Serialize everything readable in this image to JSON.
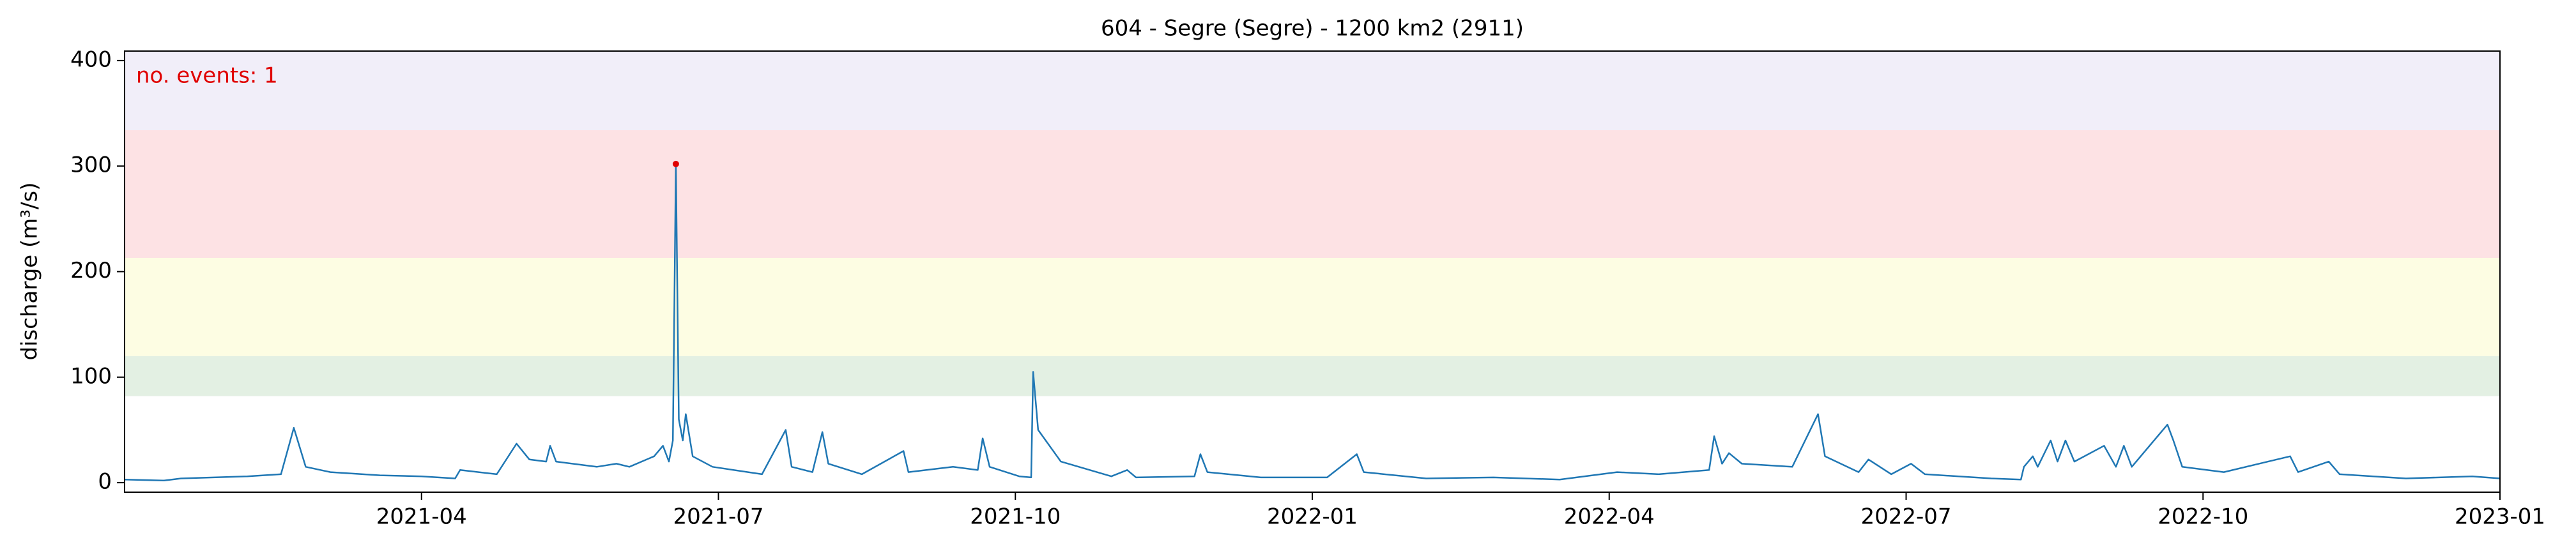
{
  "chart_data": {
    "type": "line",
    "title": "604 - Segre (Segre) - 1200 km2 (2911)",
    "ylabel": "discharge (m³/s)",
    "annotation": "no. events: 1",
    "annotation_color": "#e00000",
    "xlim": [
      0,
      24
    ],
    "xticks": [
      {
        "value": 3,
        "label": "2021-04"
      },
      {
        "value": 6,
        "label": "2021-07"
      },
      {
        "value": 9,
        "label": "2021-10"
      },
      {
        "value": 12,
        "label": "2022-01"
      },
      {
        "value": 15,
        "label": "2022-04"
      },
      {
        "value": 18,
        "label": "2022-07"
      },
      {
        "value": 21,
        "label": "2022-10"
      },
      {
        "value": 24,
        "label": "2023-01"
      }
    ],
    "ylim": [
      -9,
      409
    ],
    "yticks": [
      0,
      100,
      200,
      300,
      400
    ],
    "grid": false,
    "bands": [
      {
        "from": 82,
        "to": 120,
        "color": "#e3f0e3"
      },
      {
        "from": 120,
        "to": 213,
        "color": "#fdfde3"
      },
      {
        "from": 213,
        "to": 334,
        "color": "#fde2e4"
      },
      {
        "from": 334,
        "to": 409,
        "color": "#f1eef9"
      }
    ],
    "series": [
      {
        "color": "#1f77b4",
        "x": [
          0,
          0.4,
          0.57,
          1.24,
          1.58,
          1.71,
          1.83,
          2.08,
          2.58,
          3.0,
          3.34,
          3.39,
          3.76,
          3.96,
          4.09,
          4.26,
          4.3,
          4.36,
          4.77,
          4.97,
          5.1,
          5.35,
          5.44,
          5.5,
          5.54,
          5.57,
          5.6,
          5.64,
          5.67,
          5.74,
          5.94,
          6.44,
          6.68,
          6.74,
          6.95,
          7.05,
          7.11,
          7.45,
          7.87,
          7.92,
          8.37,
          8.62,
          8.67,
          8.74,
          9.04,
          9.16,
          9.18,
          9.23,
          9.46,
          9.97,
          10.13,
          10.22,
          10.81,
          10.87,
          10.94,
          11.48,
          12.15,
          12.45,
          12.52,
          13.15,
          13.83,
          14.5,
          15.08,
          15.5,
          16.01,
          16.06,
          16.14,
          16.21,
          16.34,
          16.85,
          17.11,
          17.18,
          17.52,
          17.62,
          17.85,
          18.05,
          18.19,
          18.86,
          19.16,
          19.19,
          19.28,
          19.33,
          19.46,
          19.53,
          19.61,
          19.7,
          20.0,
          20.12,
          20.2,
          20.28,
          20.64,
          20.7,
          20.79,
          21.21,
          21.88,
          21.96,
          22.27,
          22.38,
          23.05,
          23.72,
          24
        ],
        "values": [
          3,
          2,
          4,
          6,
          8,
          52,
          15,
          10,
          7,
          6,
          4,
          12,
          8,
          37,
          22,
          20,
          35,
          20,
          15,
          18,
          15,
          25,
          35,
          20,
          40,
          302,
          60,
          40,
          65,
          25,
          15,
          8,
          50,
          15,
          10,
          48,
          18,
          8,
          30,
          10,
          15,
          12,
          42,
          15,
          6,
          5,
          105,
          50,
          20,
          6,
          12,
          5,
          6,
          27,
          10,
          5,
          5,
          27,
          10,
          4,
          5,
          3,
          10,
          8,
          12,
          44,
          18,
          28,
          18,
          15,
          65,
          25,
          10,
          22,
          8,
          18,
          8,
          4,
          3,
          15,
          25,
          15,
          40,
          20,
          40,
          20,
          35,
          15,
          35,
          15,
          55,
          40,
          15,
          10,
          25,
          10,
          20,
          8,
          4,
          6,
          4
        ]
      }
    ],
    "events": {
      "color": "#e00000",
      "x": [
        5.57
      ],
      "values": [
        302
      ]
    }
  }
}
